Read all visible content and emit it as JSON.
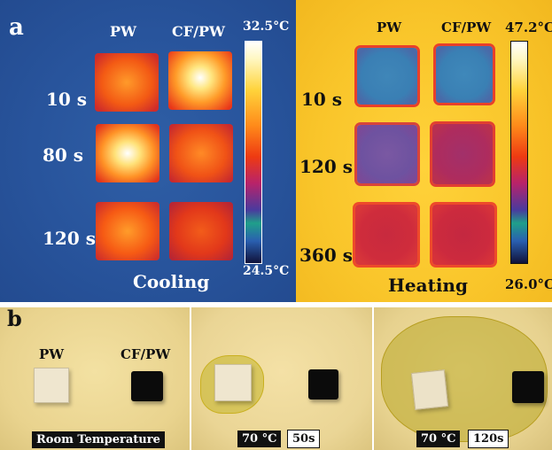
{
  "panel_a": {
    "label": "a",
    "cooling": {
      "col_pw": "PW",
      "col_cfpw": "CF/PW",
      "times": [
        "10 s",
        "80 s",
        "120 s"
      ],
      "scale_max": "32.5°C",
      "scale_min": "24.5°C",
      "caption": "Cooling"
    },
    "heating": {
      "col_pw": "PW",
      "col_cfpw": "CF/PW",
      "times": [
        "10 s",
        "120 s",
        "360 s"
      ],
      "scale_max": "47.2°C",
      "scale_min": "26.0°C",
      "caption": "Heating"
    }
  },
  "panel_b": {
    "label": "b",
    "photo1": {
      "pw_label": "PW",
      "cfpw_label": "CF/PW",
      "caption": "Room Temperature"
    },
    "photo2": {
      "temp": "70 °C",
      "time": "50s"
    },
    "photo3": {
      "temp": "70 °C",
      "time": "120s"
    }
  },
  "colors": {
    "cooling_bg": "#28549c",
    "heating_bg": "#f9c52a",
    "photo_bg": "#e9d38e",
    "cfpw_block": "#0b0b0b",
    "pw_block": "#efe6cf"
  }
}
